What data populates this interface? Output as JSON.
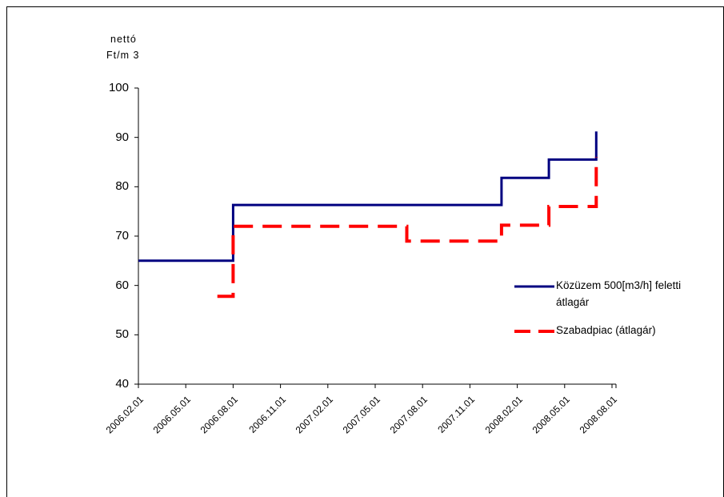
{
  "chart_data": {
    "type": "line",
    "title": "",
    "ylabel_line1": "nettó",
    "ylabel_line2": "Ft/m 3",
    "xlabel": "",
    "ylim": [
      40,
      100
    ],
    "yticks": [
      40,
      50,
      60,
      70,
      80,
      90,
      100
    ],
    "xticks": [
      "2006.02.01",
      "2006.05.01",
      "2006.08.01",
      "2006.11.01",
      "2007.02.01",
      "2007.05.01",
      "2007.08.01",
      "2007.11.01",
      "2008.02.01",
      "2008.05.01",
      "2008.08.01"
    ],
    "grid": false,
    "legend_position": "right",
    "series": [
      {
        "name_line1": "Közüzem 500[m3/h] feletti",
        "name_line2": "átlagár",
        "color": "#000080",
        "style": "solid-step",
        "x": [
          "2006.02.01",
          "2006.08.01",
          "2006.08.01",
          "2008.01.01",
          "2008.01.01",
          "2008.04.01",
          "2008.04.01",
          "2008.07.01",
          "2008.07.01"
        ],
        "y": [
          65,
          65,
          76.3,
          76.3,
          81.8,
          81.8,
          85.5,
          85.5,
          91.2
        ]
      },
      {
        "name_line1": "Szabadpiac (átlagár)",
        "color": "#ff0000",
        "style": "dashed-step",
        "x": [
          "2006.07.01",
          "2006.08.01",
          "2006.08.01",
          "2007.07.01",
          "2007.07.01",
          "2008.01.01",
          "2008.01.01",
          "2008.04.01",
          "2008.04.01",
          "2008.07.01",
          "2008.07.01"
        ],
        "y": [
          57.8,
          57.8,
          72,
          72,
          69,
          69,
          72.2,
          72.2,
          76,
          76,
          86
        ]
      }
    ]
  }
}
